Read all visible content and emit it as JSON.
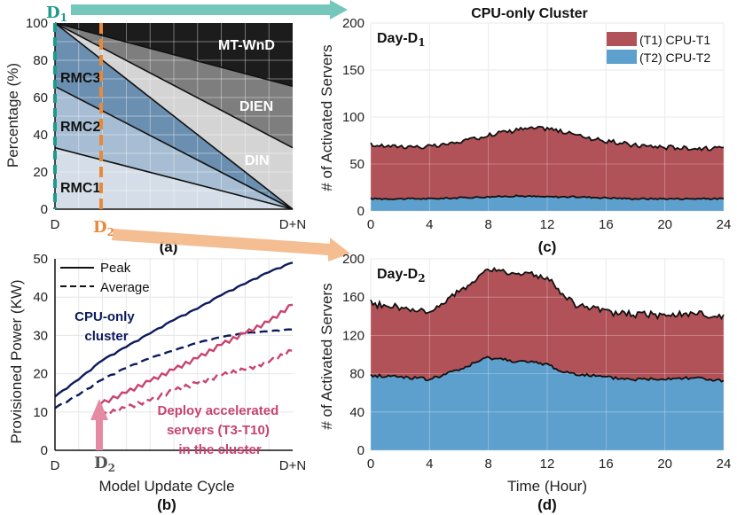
{
  "colors": {
    "teal": "#1f9a8a",
    "teal_arrow": "#6fc4b7",
    "orange": "#e88a3a",
    "orange_arrow": "#f3b98c",
    "navy": "#0d1a5c",
    "pink": "#c8436e",
    "pink_arrow": "#e58aa3",
    "red_fill": "#b05257",
    "blue_fill": "#5da0ce"
  },
  "panel_a": {
    "caption": "(a)",
    "ylabel": "Percentage (%)",
    "yticks": [
      "0",
      "20",
      "40",
      "60",
      "80",
      "100"
    ],
    "xticks": [
      "D",
      "D+N"
    ],
    "models": [
      "RMC1",
      "RMC2",
      "RMC3",
      "DIN",
      "DIEN",
      "MT-WnD"
    ],
    "marker_d1": "D",
    "marker_d1_sub": "1",
    "marker_d2": "D",
    "marker_d2_sub": "2"
  },
  "panel_b": {
    "caption": "(b)",
    "xlabel": "Model Update Cycle",
    "ylabel": "Provisioned Power (KW)",
    "xticks": [
      "D",
      "D+N"
    ],
    "legend": [
      "Peak",
      "Average"
    ],
    "label_cpu": [
      "CPU-only",
      "cluster"
    ],
    "label_accel": [
      "Deploy accelerated",
      "servers (T3-T10)",
      "in the cluster"
    ],
    "marker_d2": "D",
    "marker_d2_sub": "2"
  },
  "panel_c": {
    "title": "CPU-only Cluster",
    "caption": "(c)",
    "day_label": "Day-D",
    "day_sub": "1"
  },
  "panel_d": {
    "caption": "(d)",
    "xlabel": "Time (Hour)",
    "day_label": "Day-D",
    "day_sub": "2"
  },
  "shared": {
    "ylabel": "# of Activated Servers",
    "legend": [
      "(T1) CPU-T1",
      "(T2) CPU-T2"
    ]
  },
  "chart_data": [
    {
      "id": "a",
      "type": "area",
      "title": "",
      "xlabel": "",
      "ylabel": "Percentage (%)",
      "x": [
        0,
        1
      ],
      "xtick_labels": [
        "D",
        "D+N"
      ],
      "ylim": [
        0,
        100
      ],
      "series": [
        {
          "name": "RMC1",
          "values": [
            33,
            0
          ]
        },
        {
          "name": "RMC2",
          "values": [
            33,
            0
          ]
        },
        {
          "name": "RMC3",
          "values": [
            34,
            0
          ]
        },
        {
          "name": "DIN",
          "values": [
            0,
            33
          ]
        },
        {
          "name": "DIEN",
          "values": [
            0,
            33
          ]
        },
        {
          "name": "MT-WnD",
          "values": [
            0,
            34
          ]
        }
      ]
    },
    {
      "id": "b",
      "type": "line",
      "xlabel": "Model Update Cycle",
      "ylabel": "Provisioned Power (KW)",
      "xtick_labels": [
        "D",
        "D+N"
      ],
      "xlim": [
        0,
        1
      ],
      "ylim": [
        0,
        50
      ],
      "yticks": [
        0,
        10,
        20,
        30,
        40,
        50
      ],
      "accel_start_x": 0.19,
      "series": [
        {
          "name": "CPU-only Peak",
          "style": "solid",
          "x": [
            0,
            0.1,
            0.2,
            0.3,
            0.4,
            0.5,
            0.6,
            0.7,
            0.8,
            0.9,
            1.0
          ],
          "values": [
            14,
            18.5,
            23.5,
            27,
            30.5,
            34,
            37,
            40.5,
            43.5,
            46.5,
            49
          ]
        },
        {
          "name": "CPU-only Average",
          "style": "dashed",
          "x": [
            0,
            0.1,
            0.2,
            0.3,
            0.4,
            0.5,
            0.6,
            0.7,
            0.8,
            0.9,
            1.0
          ],
          "values": [
            11,
            14.5,
            18.5,
            21.5,
            24,
            26,
            28,
            29.5,
            30.5,
            31,
            31.5
          ]
        },
        {
          "name": "Accelerated Peak",
          "style": "solid",
          "x": [
            0.19,
            0.3,
            0.4,
            0.5,
            0.6,
            0.7,
            0.8,
            0.9,
            1.0
          ],
          "values": [
            12,
            15,
            18,
            21,
            24,
            27.5,
            30.5,
            33.5,
            38
          ]
        },
        {
          "name": "Accelerated Average",
          "style": "dashed",
          "x": [
            0.19,
            0.3,
            0.4,
            0.5,
            0.6,
            0.7,
            0.8,
            0.9,
            1.0
          ],
          "values": [
            9,
            11,
            13,
            15.5,
            17.5,
            19.5,
            21,
            23,
            26
          ]
        }
      ]
    },
    {
      "id": "c",
      "type": "area",
      "title": "CPU-only Cluster",
      "xlabel": "",
      "ylabel": "# of Activated Servers",
      "xlim": [
        0,
        24
      ],
      "ylim": [
        0,
        200
      ],
      "xticks": [
        0,
        4,
        8,
        12,
        16,
        20,
        24
      ],
      "yticks": [
        0,
        50,
        100,
        150,
        200
      ],
      "x": [
        0,
        2,
        4,
        6,
        8,
        10,
        12,
        14,
        16,
        18,
        20,
        22,
        24
      ],
      "series": [
        {
          "name": "(T2) CPU-T2",
          "values": [
            13,
            13,
            13,
            14,
            15,
            16,
            15,
            15,
            14,
            13,
            13,
            13,
            13
          ]
        },
        {
          "name": "(T1) CPU-T1",
          "values": [
            57,
            56,
            55,
            59,
            66,
            71,
            73,
            66,
            60,
            57,
            55,
            54,
            53
          ]
        }
      ]
    },
    {
      "id": "d",
      "type": "area",
      "title": "",
      "xlabel": "Time (Hour)",
      "ylabel": "# of Activated Servers",
      "xlim": [
        0,
        24
      ],
      "ylim": [
        0,
        200
      ],
      "xticks": [
        0,
        4,
        8,
        12,
        16,
        20,
        24
      ],
      "yticks": [
        0,
        40,
        80,
        120,
        160,
        200
      ],
      "x": [
        0,
        2,
        4,
        6,
        8,
        10,
        12,
        13,
        14,
        16,
        18,
        20,
        22,
        24
      ],
      "series": [
        {
          "name": "(T2) CPU-T2",
          "values": [
            78,
            77,
            74,
            84,
            97,
            93,
            90,
            82,
            80,
            76,
            74,
            75,
            76,
            72
          ]
        },
        {
          "name": "(T1) CPU-T1",
          "values": [
            75,
            72,
            70,
            81,
            92,
            92,
            90,
            81,
            72,
            68,
            68,
            67,
            67,
            66
          ]
        }
      ]
    }
  ]
}
